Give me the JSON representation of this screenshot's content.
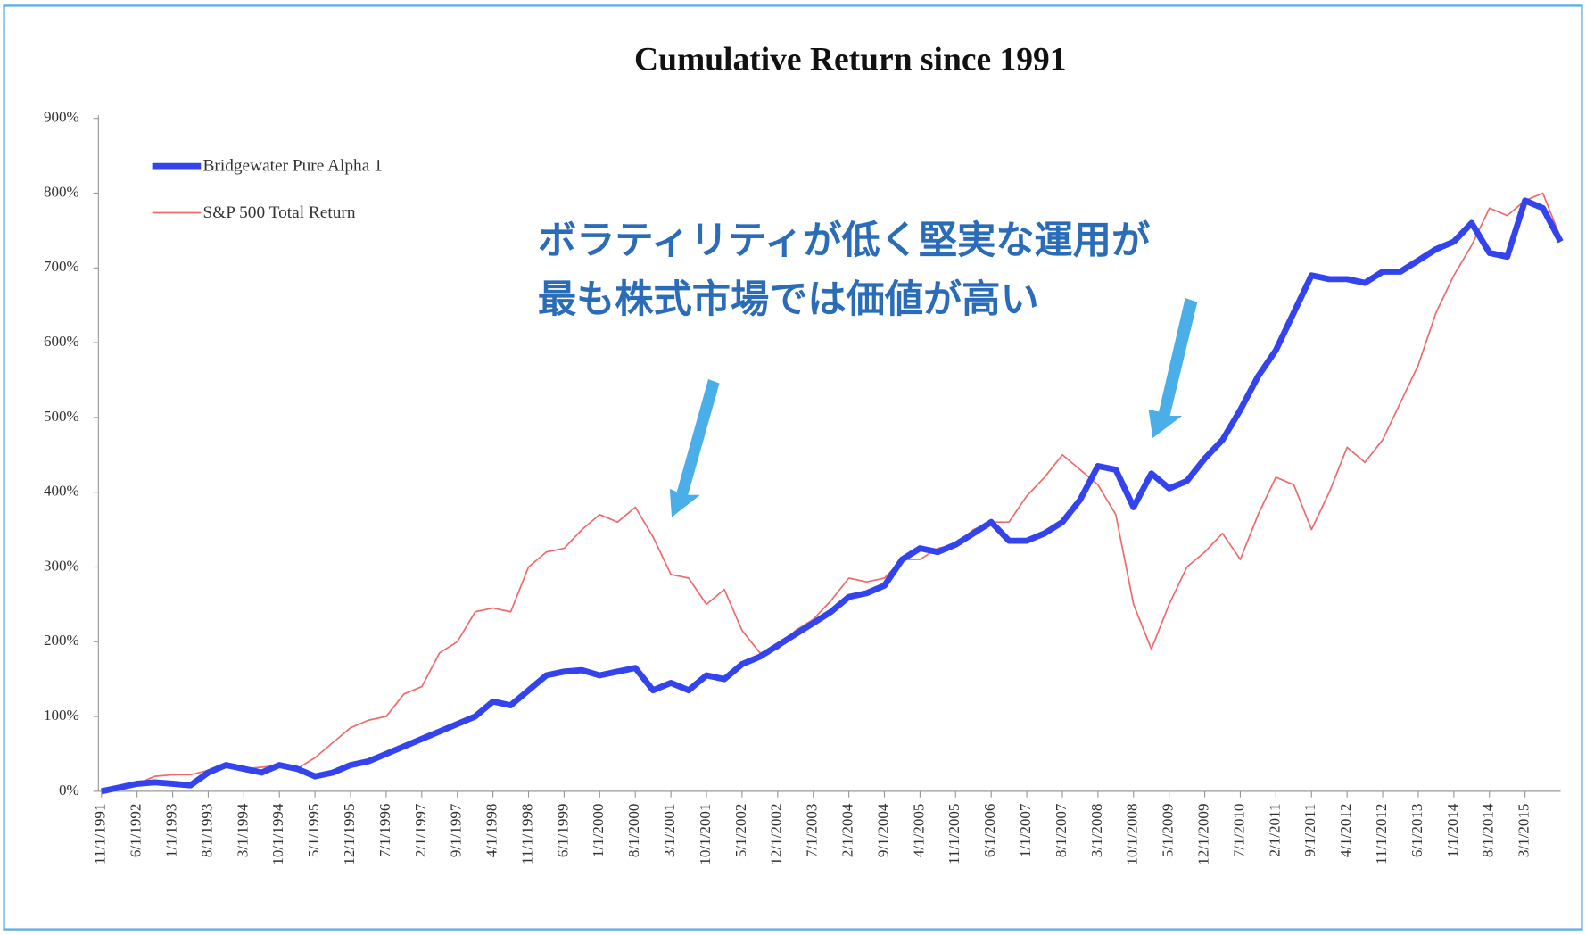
{
  "chart_data": {
    "type": "line",
    "title": "Cumulative Return since 1991",
    "annotations": [
      "ボラティリティが低く堅実な運用が",
      "最も株式市場では価値が高い"
    ],
    "categories": [
      "11/1/1991",
      null,
      "6/1/1992",
      null,
      "1/1/1993",
      null,
      "8/1/1993",
      null,
      "3/1/1994",
      null,
      "10/1/1994",
      null,
      "5/1/1995",
      null,
      "12/1/1995",
      null,
      "7/1/1996",
      null,
      "2/1/1997",
      null,
      "9/1/1997",
      null,
      "4/1/1998",
      null,
      "11/1/1998",
      null,
      "6/1/1999",
      null,
      "1/1/2000",
      null,
      "8/1/2000",
      null,
      "3/1/2001",
      null,
      "10/1/2001",
      null,
      "5/1/2002",
      null,
      "12/1/2002",
      null,
      "7/1/2003",
      null,
      "2/1/2004",
      null,
      "9/1/2004",
      null,
      "4/1/2005",
      null,
      "11/1/2005",
      null,
      "6/1/2006",
      null,
      "1/1/2007",
      null,
      "8/1/2007",
      null,
      "3/1/2008",
      null,
      "10/1/2008",
      null,
      "5/1/2009",
      null,
      "12/1/2009",
      null,
      "7/1/2010",
      null,
      "2/1/2011",
      null,
      "9/1/2011",
      null,
      "4/1/2012",
      null,
      "11/1/2012",
      null,
      "6/1/2013",
      null,
      "1/1/2014",
      null,
      "8/1/2014",
      null,
      "3/1/2015",
      null,
      null
    ],
    "series": [
      {
        "name": "Bridgewater Pure Alpha 1",
        "color": "#3344ee",
        "width": 6,
        "values": [
          0,
          5,
          10,
          12,
          10,
          8,
          25,
          35,
          30,
          25,
          35,
          30,
          20,
          25,
          35,
          40,
          50,
          60,
          70,
          80,
          90,
          100,
          120,
          115,
          135,
          155,
          160,
          162,
          155,
          160,
          165,
          135,
          145,
          135,
          155,
          150,
          170,
          180,
          195,
          210,
          225,
          240,
          260,
          265,
          275,
          310,
          325,
          320,
          330,
          345,
          360,
          335,
          335,
          345,
          360,
          390,
          435,
          430,
          380,
          425,
          405,
          415,
          445,
          470,
          510,
          555,
          590,
          640,
          690,
          685,
          685,
          680,
          695,
          695,
          710,
          725,
          735,
          760,
          720,
          715,
          790,
          780,
          735
        ]
      },
      {
        "name": "S&P 500 Total Return",
        "color": "#ee6b6b",
        "width": 1.5,
        "values": [
          0,
          5,
          10,
          20,
          22,
          22,
          28,
          32,
          30,
          32,
          35,
          30,
          45,
          65,
          85,
          95,
          100,
          130,
          140,
          185,
          200,
          240,
          245,
          240,
          300,
          320,
          325,
          350,
          370,
          360,
          380,
          340,
          290,
          285,
          250,
          270,
          215,
          185,
          190,
          215,
          230,
          255,
          285,
          280,
          285,
          310,
          310,
          325,
          330,
          350,
          360,
          360,
          395,
          420,
          450,
          430,
          410,
          370,
          250,
          190,
          250,
          300,
          320,
          345,
          310,
          370,
          420,
          410,
          350,
          400,
          460,
          440,
          470,
          520,
          570,
          640,
          690,
          730,
          780,
          770,
          790,
          800,
          740
        ]
      }
    ],
    "ylim": [
      0,
      900
    ],
    "yticks": [
      {
        "value": 0,
        "label": "0%"
      },
      {
        "value": 100,
        "label": "100%"
      },
      {
        "value": 200,
        "label": "200%"
      },
      {
        "value": 300,
        "label": "300%"
      },
      {
        "value": 400,
        "label": "400%"
      },
      {
        "value": 500,
        "label": "500%"
      },
      {
        "value": 600,
        "label": "600%"
      },
      {
        "value": 700,
        "label": "700%"
      },
      {
        "value": 800,
        "label": "800%"
      },
      {
        "value": 900,
        "label": "900%"
      }
    ],
    "grid": false
  }
}
